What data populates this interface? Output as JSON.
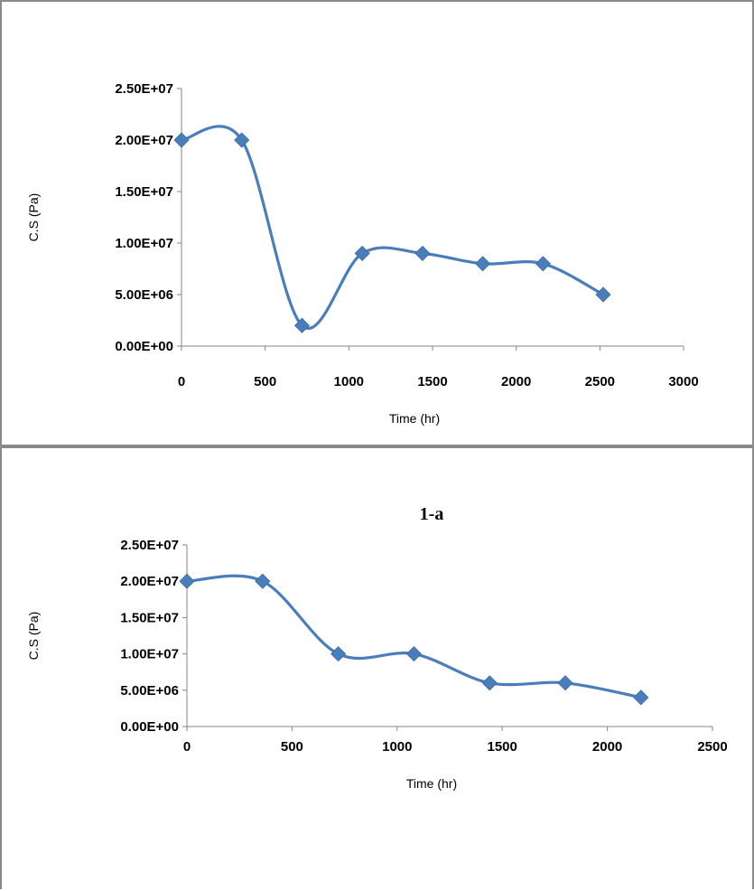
{
  "chart_data": [
    {
      "type": "line",
      "title": "",
      "xlabel": "Time (hr)",
      "ylabel": "C.S (Pa)",
      "xlim": [
        0,
        3000
      ],
      "ylim": [
        0,
        25000000
      ],
      "xticks": [
        "0",
        "500",
        "1000",
        "1500",
        "2000",
        "2500",
        "3000"
      ],
      "yticks": [
        "0.00E+00",
        "5.00E+06",
        "1.00E+07",
        "1.50E+07",
        "2.00E+07",
        "2.50E+07"
      ],
      "grid": false,
      "legend": "none",
      "series": [
        {
          "color": "#4a7ebb",
          "marker": "diamond",
          "smooth": true,
          "x": [
            0,
            360,
            720,
            1080,
            1440,
            1800,
            2160,
            2520
          ],
          "y": [
            20000000,
            20000000,
            2000000,
            9000000,
            9000000,
            8000000,
            8000000,
            5000000
          ]
        }
      ]
    },
    {
      "type": "line",
      "title": "1-a",
      "xlabel": "Time (hr)",
      "ylabel": "C.S (Pa)",
      "xlim": [
        0,
        2500
      ],
      "ylim": [
        0,
        25000000
      ],
      "xticks": [
        "0",
        "500",
        "1000",
        "1500",
        "2000",
        "2500"
      ],
      "yticks": [
        "0.00E+00",
        "5.00E+06",
        "1.00E+07",
        "1.50E+07",
        "2.00E+07",
        "2.50E+07"
      ],
      "grid": false,
      "legend": "none",
      "series": [
        {
          "color": "#4a7ebb",
          "marker": "diamond",
          "smooth": true,
          "x": [
            0,
            360,
            720,
            1080,
            1440,
            1800,
            2160
          ],
          "y": [
            20000000,
            20000000,
            10000000,
            10000000,
            6000000,
            6000000,
            4000000
          ]
        }
      ]
    }
  ]
}
